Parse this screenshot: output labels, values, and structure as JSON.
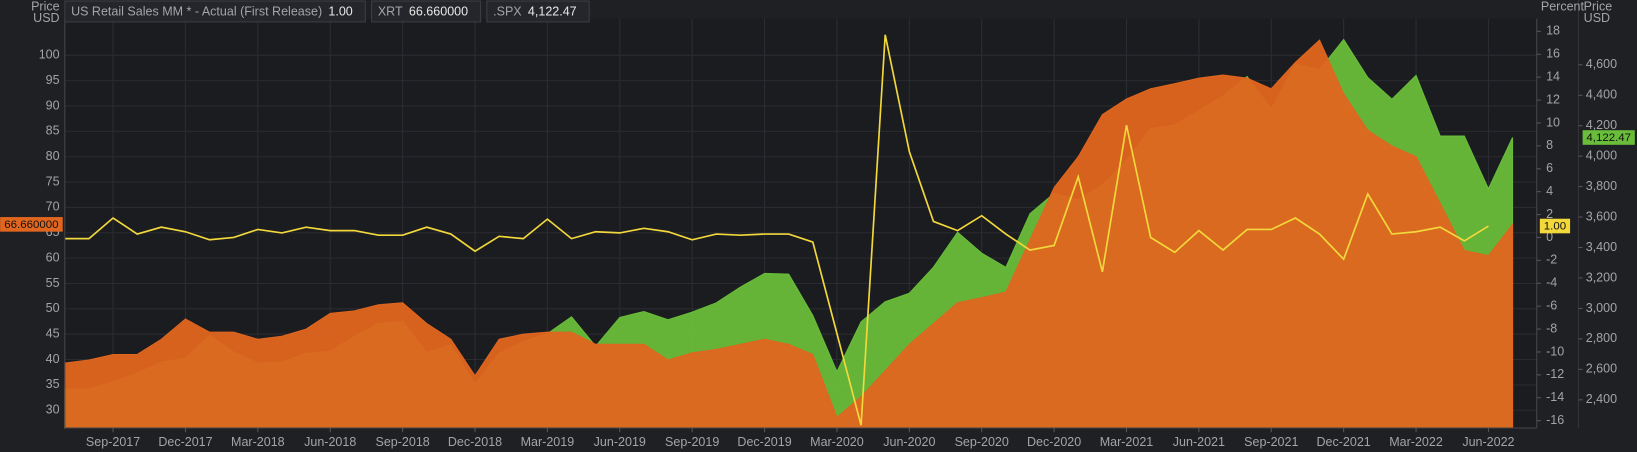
{
  "chart_data": {
    "type": "multi-axis",
    "ylabel": [
      "Price",
      "USD"
    ],
    "y2label": [
      "Percent"
    ],
    "y3label": [
      "Price",
      "USD"
    ],
    "x": [
      "Jul-2017",
      "Aug-2017",
      "Sep-2017",
      "Oct-2017",
      "Nov-2017",
      "Dec-2017",
      "Jan-2018",
      "Feb-2018",
      "Mar-2018",
      "Apr-2018",
      "May-2018",
      "Jun-2018",
      "Jul-2018",
      "Aug-2018",
      "Sep-2018",
      "Oct-2018",
      "Nov-2018",
      "Dec-2018",
      "Jan-2019",
      "Feb-2019",
      "Mar-2019",
      "Apr-2019",
      "May-2019",
      "Jun-2019",
      "Jul-2019",
      "Aug-2019",
      "Sep-2019",
      "Oct-2019",
      "Nov-2019",
      "Dec-2019",
      "Jan-2020",
      "Feb-2020",
      "Mar-2020",
      "Apr-2020",
      "May-2020",
      "Jun-2020",
      "Jul-2020",
      "Aug-2020",
      "Sep-2020",
      "Oct-2020",
      "Nov-2020",
      "Dec-2020",
      "Jan-2021",
      "Feb-2021",
      "Mar-2021",
      "Apr-2021",
      "May-2021",
      "Jun-2021",
      "Jul-2021",
      "Aug-2021",
      "Sep-2021",
      "Oct-2021",
      "Nov-2021",
      "Dec-2021",
      "Jan-2022",
      "Feb-2022",
      "Mar-2022",
      "Apr-2022",
      "May-2022",
      "Jun-2022",
      "Jul-2022"
    ],
    "xlim": [
      "Jul-2017",
      "Aug-2022"
    ],
    "xticks": [
      "Sep-2017",
      "Dec-2017",
      "Mar-2018",
      "Jun-2018",
      "Sep-2018",
      "Dec-2018",
      "Mar-2019",
      "Jun-2019",
      "Sep-2019",
      "Dec-2019",
      "Mar-2020",
      "Jun-2020",
      "Sep-2020",
      "Dec-2020",
      "Mar-2021",
      "Jun-2021",
      "Sep-2021",
      "Dec-2021",
      "Mar-2022",
      "Jun-2022"
    ],
    "ylim": [
      26.5,
      107.2
    ],
    "yticks": [
      30,
      35,
      40,
      45,
      50,
      55,
      60,
      65,
      70,
      75,
      80,
      85,
      90,
      95,
      100
    ],
    "y2lim": [
      -16.64,
      19.1
    ],
    "y2ticks": [
      -16,
      -14,
      -12,
      -10,
      -8,
      -6,
      -4,
      -2,
      0,
      2,
      4,
      6,
      8,
      10,
      12,
      14,
      16,
      18
    ],
    "y3lim": [
      2215,
      4902
    ],
    "y3ticks": [
      {
        "value": 2400,
        "label": "2,400"
      },
      {
        "value": 2600,
        "label": "2,600"
      },
      {
        "value": 2800,
        "label": "2,800"
      },
      {
        "value": 3000,
        "label": "3,000"
      },
      {
        "value": 3200,
        "label": "3,200"
      },
      {
        "value": 3400,
        "label": "3,400"
      },
      {
        "value": 3600,
        "label": "3,600"
      },
      {
        "value": 3800,
        "label": "3,800"
      },
      {
        "value": 4000,
        "label": "4,000"
      },
      {
        "value": 4200,
        "label": "4,200"
      },
      {
        "value": 4400,
        "label": "4,400"
      },
      {
        "value": 4600,
        "label": "4,600"
      }
    ],
    "grid": true,
    "series": [
      {
        "name": "US Retail Sales MM * - Actual (First Release)",
        "type": "line",
        "axis": "y2",
        "color": "#f2d83b",
        "current": {
          "value": 1,
          "label": "1.00"
        },
        "values": [
          -0.1,
          -0.1,
          1.7,
          0.3,
          0.9,
          0.5,
          -0.2,
          0.0,
          0.7,
          0.4,
          0.9,
          0.6,
          0.6,
          0.2,
          0.2,
          0.9,
          0.3,
          -1.2,
          0.1,
          -0.1,
          1.6,
          -0.1,
          0.5,
          0.4,
          0.8,
          0.5,
          -0.2,
          0.3,
          0.2,
          0.3,
          0.3,
          -0.4,
          -8.4,
          -16.4,
          17.7,
          7.5,
          1.4,
          0.6,
          1.9,
          0.3,
          -1.1,
          -0.7,
          5.3,
          -3.0,
          9.8,
          0.0,
          -1.3,
          0.6,
          -1.1,
          0.7,
          0.7,
          1.7,
          0.3,
          -1.9,
          3.8,
          0.3,
          0.5,
          0.9,
          -0.3,
          1.0,
          null
        ]
      },
      {
        "name": "XRT",
        "type": "area",
        "axis": "y",
        "color": "#e0661f",
        "current": {
          "value": 66.66,
          "label": "66.660000"
        },
        "values": [
          39.3,
          39.9,
          41,
          41,
          44,
          48,
          45.4,
          45.4,
          44,
          44.6,
          46,
          49.1,
          49.6,
          50.8,
          51.2,
          47.1,
          44,
          36.8,
          44,
          45,
          45.4,
          45.4,
          43,
          43,
          43,
          39.9,
          41.3,
          42,
          43,
          44,
          43,
          41,
          28.6,
          32.7,
          37.8,
          43,
          47.1,
          51.2,
          52.2,
          53.3,
          63.6,
          73.9,
          80,
          88.3,
          91.4,
          93.4,
          94.4,
          95.5,
          96.1,
          95.5,
          93.4,
          98.6,
          103,
          92.4,
          85.2,
          82.1,
          80,
          70.8,
          61.5,
          60.5,
          66.66
        ]
      },
      {
        "name": ".SPX",
        "type": "area",
        "axis": "y3",
        "color": "#69bd3a",
        "current": {
          "value": 4122.47,
          "label": "4,122.47"
        },
        "values": [
          2470,
          2471,
          2519,
          2575,
          2647,
          2673,
          2823,
          2713,
          2640,
          2648,
          2705,
          2718,
          2816,
          2901,
          2913,
          2711,
          2760,
          2506,
          2704,
          2784,
          2834,
          2945,
          2752,
          2941,
          2980,
          2926,
          2976,
          3037,
          3140,
          3230,
          3225,
          2954,
          2585,
          2912,
          3044,
          3100,
          3271,
          3500,
          3363,
          3270,
          3622,
          3756,
          3714,
          3811,
          3973,
          4181,
          4204,
          4298,
          4395,
          4523,
          4308,
          4605,
          4567,
          4766,
          4516,
          4374,
          4530,
          4132,
          4132,
          3785,
          4122.47
        ]
      }
    ]
  }
}
